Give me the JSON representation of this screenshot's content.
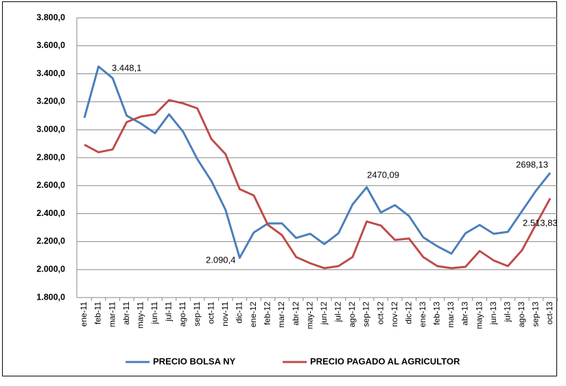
{
  "chart_data": {
    "type": "line",
    "categories": [
      "ene-11",
      "feb-11",
      "mar-11",
      "abr-11",
      "may-11",
      "jun-11",
      "jul-11",
      "ago-11",
      "sep-11",
      "oct-11",
      "nov-11",
      "dic-11",
      "ene-12",
      "feb-12",
      "mar-12",
      "abr-12",
      "may-12",
      "jun-12",
      "jul-12",
      "ago-12",
      "sep-12",
      "oct-12",
      "nov-12",
      "dic-12",
      "ene-13",
      "feb-13",
      "mar-13",
      "abr-13",
      "may-13",
      "jun-13",
      "jul-13",
      "ago-13",
      "sep-13",
      "oct-13"
    ],
    "series": [
      {
        "name": "PRECIO BOLSA NY",
        "color": "#4a7ebb",
        "values": [
          3085,
          3452,
          3369,
          3100,
          3045,
          2975,
          3110,
          2985,
          2790,
          2633,
          2427,
          2084,
          2265,
          2330,
          2330,
          2226,
          2256,
          2182,
          2260,
          2466,
          2589,
          2408,
          2461,
          2383,
          2231,
          2167,
          2114,
          2260,
          2319,
          2256,
          2270,
          2418,
          2565,
          2692
        ]
      },
      {
        "name": "PRECIO PAGADO AL AGRICULTOR",
        "color": "#be4b48",
        "values": [
          2893,
          2839,
          2859,
          3055,
          3094,
          3110,
          3212,
          3188,
          3153,
          2933,
          2825,
          2575,
          2530,
          2320,
          2246,
          2090,
          2045,
          2010,
          2025,
          2090,
          2344,
          2315,
          2212,
          2222,
          2090,
          2025,
          2010,
          2020,
          2133,
          2065,
          2025,
          2138,
          2325,
          2510
        ]
      }
    ],
    "annotations": [
      "3.448,1",
      "2.090,4",
      "2470,09",
      "2698,13",
      "2.513,83"
    ],
    "ylim": [
      1800,
      3800
    ],
    "yticks": [
      {
        "value": 1800,
        "label": "1.800,0"
      },
      {
        "value": 2000,
        "label": "2.000,0"
      },
      {
        "value": 2200,
        "label": "2.200,0"
      },
      {
        "value": 2400,
        "label": "2.400,0"
      },
      {
        "value": 2600,
        "label": "2.600,0"
      },
      {
        "value": 2800,
        "label": "2.800,0"
      },
      {
        "value": 3000,
        "label": "3.000,0"
      },
      {
        "value": 3200,
        "label": "3.200,0"
      },
      {
        "value": 3400,
        "label": "3.400,0"
      },
      {
        "value": 3600,
        "label": "3.600,0"
      },
      {
        "value": 3800,
        "label": "3.800,0"
      }
    ],
    "grid": true,
    "legend": "bottom"
  }
}
